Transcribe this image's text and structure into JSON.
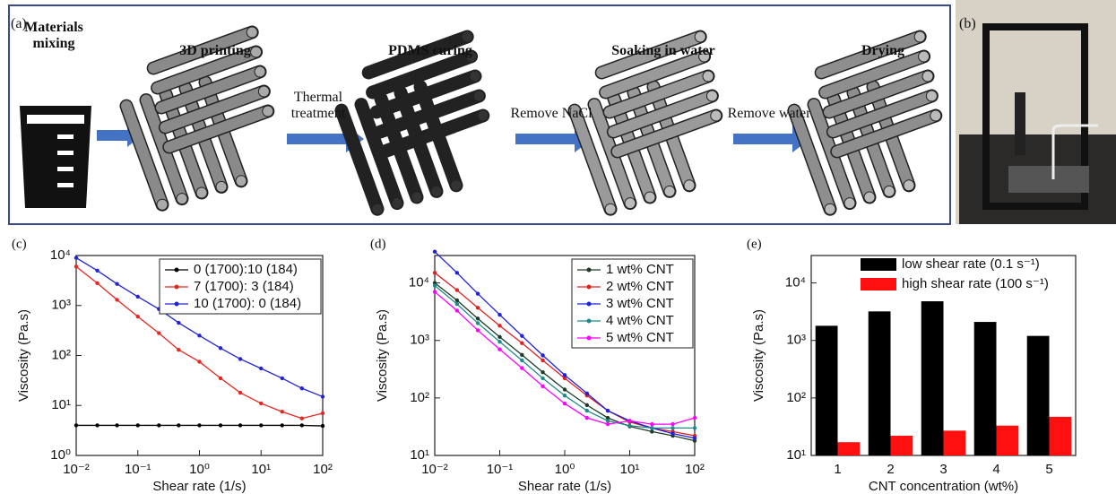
{
  "panel_a": {
    "label": "(a)",
    "steps": [
      "Materials mixing",
      "3D printing",
      "PDMS curing",
      "Soaking in water",
      "Drying"
    ],
    "arrows": [
      "Thermal treatment",
      "Remove NaCl",
      "Remove water"
    ]
  },
  "panel_b": {
    "label": "(b)"
  },
  "chart_data": [
    {
      "type": "line",
      "panel_label": "(c)",
      "x_label": "Shear rate (1/s)",
      "y_label": "Viscosity (Pa.s)",
      "xlog": true,
      "ylog": true,
      "legend": "upper right",
      "x": [
        0.01,
        0.022,
        0.046,
        0.1,
        0.22,
        0.46,
        1,
        2.2,
        4.6,
        10,
        22,
        46,
        100
      ],
      "xlim": [
        0.01,
        100
      ],
      "xticks": [
        {
          "value": 0.01,
          "label": "10⁻²"
        },
        {
          "value": 0.1,
          "label": "10⁻¹"
        },
        {
          "value": 1,
          "label": "10⁰"
        },
        {
          "value": 10,
          "label": "10¹"
        },
        {
          "value": 100,
          "label": "10²"
        }
      ],
      "ylim": [
        1,
        10000
      ],
      "yticks": [
        {
          "value": 1,
          "label": "10⁰"
        },
        {
          "value": 10,
          "label": "10¹"
        },
        {
          "value": 100,
          "label": "10²"
        },
        {
          "value": 1000,
          "label": "10³"
        },
        {
          "value": 10000,
          "label": "10⁴"
        }
      ],
      "series": [
        {
          "name": "0 (1700):10 (184)",
          "color": "#000000",
          "values": [
            4,
            4,
            4,
            4,
            4,
            4,
            4,
            4,
            4,
            4,
            4,
            4,
            3.9
          ]
        },
        {
          "name": "7 (1700): 3 (184)",
          "color": "#e8261f",
          "values": [
            6000,
            2800,
            1300,
            600,
            280,
            130,
            75,
            35,
            18,
            11,
            7.5,
            5.5,
            7
          ]
        },
        {
          "name": "10 (1700): 0 (184)",
          "color": "#2323d6",
          "values": [
            9000,
            5000,
            2700,
            1500,
            850,
            450,
            250,
            140,
            85,
            55,
            35,
            22,
            15
          ]
        }
      ]
    },
    {
      "type": "line",
      "panel_label": "(d)",
      "x_label": "Shear rate (1/s)",
      "y_label": "Viscosity (Pa.s)",
      "xlog": true,
      "ylog": true,
      "legend": "upper right",
      "x": [
        0.01,
        0.022,
        0.046,
        0.1,
        0.22,
        0.46,
        1,
        2.2,
        4.6,
        10,
        22,
        46,
        100
      ],
      "xlim": [
        0.01,
        100
      ],
      "xticks": [
        {
          "value": 0.01,
          "label": "10⁻²"
        },
        {
          "value": 0.1,
          "label": "10⁻¹"
        },
        {
          "value": 1,
          "label": "10⁰"
        },
        {
          "value": 10,
          "label": "10¹"
        },
        {
          "value": 100,
          "label": "10²"
        }
      ],
      "ylim": [
        10,
        30000
      ],
      "yticks": [
        {
          "value": 10,
          "label": "10¹"
        },
        {
          "value": 100,
          "label": "10²"
        },
        {
          "value": 1000,
          "label": "10³"
        },
        {
          "value": 10000,
          "label": "10⁴"
        }
      ],
      "series": [
        {
          "name": "1 wt% CNT",
          "color": "#1f3a26",
          "values": [
            10000,
            5000,
            2400,
            1150,
            560,
            280,
            140,
            75,
            45,
            32,
            26,
            22,
            18
          ]
        },
        {
          "name": "2 wt% CNT",
          "color": "#e02020",
          "values": [
            15000,
            7500,
            3700,
            1800,
            900,
            450,
            220,
            110,
            60,
            38,
            30,
            26,
            22
          ]
        },
        {
          "name": "3 wt% CNT",
          "color": "#2020e0",
          "values": [
            35000,
            15000,
            6500,
            2800,
            1200,
            550,
            250,
            120,
            60,
            40,
            30,
            24,
            20
          ]
        },
        {
          "name": "4 wt% CNT",
          "color": "#208a8a",
          "values": [
            9000,
            4300,
            2000,
            950,
            450,
            220,
            110,
            60,
            40,
            33,
            30,
            30,
            30
          ]
        },
        {
          "name": "5 wt% CNT",
          "color": "#ff00ff",
          "values": [
            7000,
            3300,
            1500,
            700,
            330,
            160,
            80,
            45,
            35,
            40,
            35,
            35,
            45
          ]
        }
      ]
    },
    {
      "type": "bar",
      "panel_label": "(e)",
      "x_label": "CNT concentration (wt%)",
      "y_label": "Viscosity (Pa.s)",
      "ylog": true,
      "legend": "upper center",
      "categories": [
        "1",
        "2",
        "3",
        "4",
        "5"
      ],
      "ylim": [
        10,
        30000
      ],
      "yticks": [
        {
          "value": 10,
          "label": "10¹"
        },
        {
          "value": 100,
          "label": "10²"
        },
        {
          "value": 1000,
          "label": "10³"
        },
        {
          "value": 10000,
          "label": "10⁴"
        }
      ],
      "series": [
        {
          "name": "low shear rate (0.1 s⁻¹)",
          "color": "#000000",
          "values": [
            1800,
            3200,
            4800,
            2100,
            1200
          ]
        },
        {
          "name": "high shear rate (100 s⁻¹)",
          "color": "#ff1010",
          "values": [
            17,
            22,
            27,
            33,
            47
          ]
        }
      ]
    }
  ]
}
